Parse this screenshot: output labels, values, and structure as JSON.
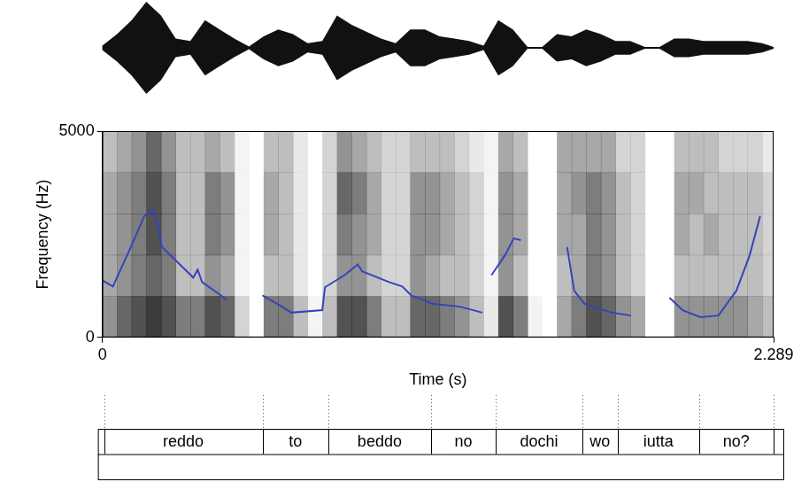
{
  "chart_data": {
    "type": "line",
    "x_label": "Time (s)",
    "y_label": "Frequency (Hz)",
    "xlim": [
      0,
      2.289
    ],
    "ylim": [
      0,
      5000
    ],
    "xticks": [
      0,
      2.289
    ],
    "yticks": [
      0,
      5000
    ],
    "grid": false,
    "color": "#3344bb",
    "x": [
      0,
      0.036,
      0.097,
      0.143,
      0.173,
      0.188,
      0.203,
      0.249,
      0.31,
      0.325,
      0.34,
      0.425,
      0.48,
      0.546,
      0.613,
      0.644,
      0.75,
      0.759,
      0.826,
      0.871,
      0.886,
      0.978,
      1.023,
      1.053,
      1.129,
      1.22,
      1.296,
      1.31,
      1.327,
      1.372,
      1.403,
      1.427,
      1.5,
      1.585,
      1.609,
      1.645,
      1.737,
      1.803,
      1.87,
      1.934,
      1.979,
      2.04,
      2.101,
      2.162,
      2.207,
      2.243
    ],
    "values": [
      1385,
      1235,
      2190,
      2940,
      3090,
      2790,
      2190,
      1875,
      1450,
      1640,
      1340,
      915,
      null,
      1020,
      745,
      600,
      660,
      1215,
      1510,
      1770,
      1600,
      1340,
      1235,
      1020,
      810,
      745,
      600,
      null,
      1510,
      1980,
      2400,
      2360,
      null,
      2190,
      1130,
      810,
      600,
      530,
      null,
      960,
      660,
      490,
      530,
      1130,
      1980,
      2940
    ],
    "waveform": {
      "x": [
        0,
        0.05,
        0.1,
        0.15,
        0.2,
        0.25,
        0.3,
        0.35,
        0.4,
        0.45,
        0.5,
        0.55,
        0.6,
        0.65,
        0.7,
        0.75,
        0.8,
        0.85,
        0.9,
        0.95,
        1.0,
        1.05,
        1.1,
        1.15,
        1.2,
        1.25,
        1.3,
        1.35,
        1.4,
        1.45,
        1.5,
        1.55,
        1.6,
        1.65,
        1.7,
        1.75,
        1.8,
        1.85,
        1.9,
        1.95,
        2.0,
        2.05,
        2.1,
        2.15,
        2.2,
        2.25,
        2.289
      ],
      "amplitude": [
        0.05,
        0.3,
        0.6,
        1.0,
        0.7,
        0.2,
        0.15,
        0.6,
        0.4,
        0.2,
        0.03,
        0.25,
        0.4,
        0.3,
        0.1,
        0.15,
        0.7,
        0.5,
        0.35,
        0.2,
        0.1,
        0.4,
        0.4,
        0.25,
        0.2,
        0.15,
        0.05,
        0.6,
        0.4,
        0.02,
        0.02,
        0.3,
        0.25,
        0.4,
        0.3,
        0.15,
        0.15,
        0.02,
        0.02,
        0.2,
        0.2,
        0.15,
        0.15,
        0.15,
        0.15,
        0.1,
        0.02
      ]
    },
    "spectrogram": {
      "time": [
        0,
        0.05,
        0.1,
        0.15,
        0.2,
        0.25,
        0.3,
        0.35,
        0.4,
        0.45,
        0.5,
        0.55,
        0.6,
        0.65,
        0.7,
        0.75,
        0.8,
        0.85,
        0.9,
        0.95,
        1.0,
        1.05,
        1.1,
        1.15,
        1.2,
        1.25,
        1.3,
        1.35,
        1.4,
        1.45,
        1.5,
        1.55,
        1.6,
        1.65,
        1.7,
        1.75,
        1.8,
        1.85,
        1.9,
        1.95,
        2.0,
        2.05,
        2.1,
        2.15,
        2.2,
        2.25
      ],
      "frequency": [
        0,
        1000,
        2000,
        3000,
        4000,
        5000
      ],
      "cells": [
        [
          0.5,
          0.4,
          0.4,
          0.4,
          0.3
        ],
        [
          0.7,
          0.5,
          0.5,
          0.5,
          0.4
        ],
        [
          0.8,
          0.6,
          0.6,
          0.6,
          0.5
        ],
        [
          0.9,
          0.7,
          0.8,
          0.8,
          0.7
        ],
        [
          0.8,
          0.6,
          0.6,
          0.6,
          0.5
        ],
        [
          0.6,
          0.3,
          0.3,
          0.3,
          0.3
        ],
        [
          0.6,
          0.3,
          0.3,
          0.3,
          0.3
        ],
        [
          0.8,
          0.5,
          0.6,
          0.6,
          0.4
        ],
        [
          0.7,
          0.4,
          0.5,
          0.5,
          0.3
        ],
        [
          0.2,
          0.05,
          0.05,
          0.05,
          0.05
        ],
        [
          0,
          0,
          0,
          0,
          0
        ],
        [
          0.6,
          0.3,
          0.4,
          0.4,
          0.3
        ],
        [
          0.6,
          0.3,
          0.3,
          0.3,
          0.3
        ],
        [
          0.3,
          0.1,
          0.1,
          0.1,
          0.1
        ],
        [
          0.05,
          0,
          0,
          0,
          0
        ],
        [
          0.3,
          0.2,
          0.2,
          0.2,
          0.2
        ],
        [
          0.8,
          0.5,
          0.6,
          0.7,
          0.5
        ],
        [
          0.8,
          0.5,
          0.5,
          0.6,
          0.4
        ],
        [
          0.6,
          0.3,
          0.4,
          0.4,
          0.3
        ],
        [
          0.3,
          0.2,
          0.2,
          0.2,
          0.2
        ],
        [
          0.3,
          0.2,
          0.2,
          0.2,
          0.2
        ],
        [
          0.7,
          0.5,
          0.5,
          0.5,
          0.3
        ],
        [
          0.7,
          0.4,
          0.5,
          0.5,
          0.3
        ],
        [
          0.6,
          0.3,
          0.4,
          0.4,
          0.3
        ],
        [
          0.5,
          0.3,
          0.3,
          0.3,
          0.2
        ],
        [
          0.3,
          0.2,
          0.2,
          0.2,
          0.1
        ],
        [
          0.1,
          0.05,
          0.05,
          0.05,
          0.05
        ],
        [
          0.8,
          0.5,
          0.5,
          0.5,
          0.4
        ],
        [
          0.6,
          0.3,
          0.4,
          0.4,
          0.3
        ],
        [
          0.05,
          0,
          0,
          0,
          0
        ],
        [
          0,
          0,
          0,
          0,
          0
        ],
        [
          0.4,
          0.3,
          0.4,
          0.4,
          0.4
        ],
        [
          0.6,
          0.4,
          0.4,
          0.5,
          0.4
        ],
        [
          0.8,
          0.6,
          0.6,
          0.6,
          0.4
        ],
        [
          0.7,
          0.5,
          0.5,
          0.5,
          0.4
        ],
        [
          0.5,
          0.3,
          0.3,
          0.3,
          0.2
        ],
        [
          0.4,
          0.2,
          0.2,
          0.2,
          0.2
        ],
        [
          0,
          0,
          0,
          0,
          0
        ],
        [
          0,
          0,
          0,
          0,
          0
        ],
        [
          0.5,
          0.3,
          0.4,
          0.4,
          0.3
        ],
        [
          0.5,
          0.3,
          0.3,
          0.4,
          0.3
        ],
        [
          0.5,
          0.3,
          0.4,
          0.3,
          0.3
        ],
        [
          0.5,
          0.3,
          0.3,
          0.3,
          0.2
        ],
        [
          0.5,
          0.3,
          0.3,
          0.3,
          0.2
        ],
        [
          0.4,
          0.3,
          0.3,
          0.3,
          0.2
        ],
        [
          0.3,
          0.2,
          0.2,
          0.2,
          0.1
        ]
      ]
    },
    "segments": {
      "boundaries": [
        0.006,
        0.546,
        0.771,
        1.12,
        1.342,
        1.636,
        1.758,
        2.034,
        2.289
      ],
      "labels": [
        "reddo",
        "to",
        "beddo",
        "no",
        "dochi",
        "wo",
        "iutta",
        "no?"
      ]
    }
  }
}
